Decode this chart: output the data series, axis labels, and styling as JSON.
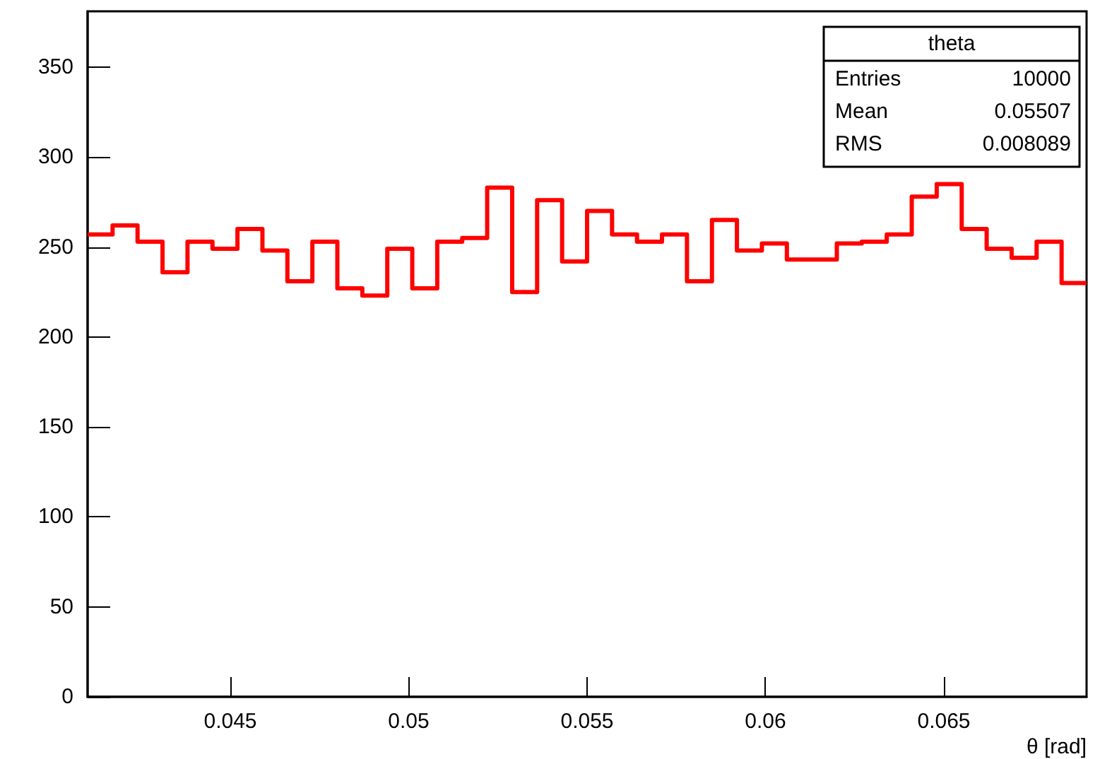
{
  "chart_data": {
    "type": "histogram",
    "xlabel": "θ [rad]",
    "bins": [
      0.041,
      0.0417,
      0.0424,
      0.0431,
      0.0438,
      0.0445,
      0.0452,
      0.0459,
      0.0466,
      0.0473,
      0.048,
      0.0487,
      0.0494,
      0.0501,
      0.0508,
      0.0515,
      0.0522,
      0.0529,
      0.0536,
      0.0543,
      0.055,
      0.0557,
      0.0564,
      0.0571,
      0.0578,
      0.0585,
      0.0592,
      0.0599,
      0.0606,
      0.0613,
      0.062,
      0.0627,
      0.0634,
      0.0641,
      0.0648,
      0.0655,
      0.0662,
      0.0669,
      0.0676,
      0.0683,
      0.069
    ],
    "values": [
      257,
      262,
      253,
      236,
      253,
      249,
      260,
      248,
      231,
      253,
      227,
      223,
      249,
      227,
      253,
      255,
      283,
      225,
      276,
      242,
      270,
      257,
      253,
      257,
      231,
      265,
      248,
      252,
      243,
      243,
      252,
      253,
      257,
      278,
      285,
      260,
      249,
      244,
      253,
      230
    ],
    "color": "#ff0000",
    "xlim": [
      0.041,
      0.069
    ],
    "xticks": [
      0.045,
      0.05,
      0.055,
      0.06,
      0.065
    ],
    "ylim": [
      0,
      381
    ],
    "yticks": [
      0,
      50,
      100,
      150,
      200,
      250,
      300,
      350
    ],
    "grid": false,
    "annotations": [
      "theta",
      "Entries",
      "10000",
      "Mean",
      "0.05507",
      "RMS",
      "0.008089"
    ]
  }
}
